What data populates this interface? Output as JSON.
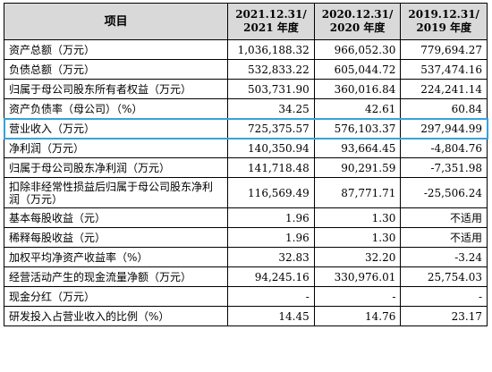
{
  "header": {
    "item": "项目",
    "cols": [
      {
        "line1": "2021.12.31/",
        "line2": "2021 年度"
      },
      {
        "line1": "2020.12.31/",
        "line2": "2020 年度"
      },
      {
        "line1": "2019.12.31/",
        "line2": "2019 年度"
      }
    ]
  },
  "rows": [
    {
      "label": "资产总额（万元）",
      "v": [
        "1,036,188.32",
        "966,052.30",
        "779,694.27"
      ]
    },
    {
      "label": "负债总额（万元）",
      "v": [
        "532,833.22",
        "605,044.72",
        "537,474.16"
      ]
    },
    {
      "label": "归属于母公司股东所有者权益（万元）",
      "v": [
        "503,731.90",
        "360,016.84",
        "224,241.14"
      ]
    },
    {
      "label": "资产负债率（母公司）（%）",
      "v": [
        "34.25",
        "42.61",
        "60.84"
      ]
    },
    {
      "label": "营业收入（万元）",
      "v": [
        "725,375.57",
        "576,103.37",
        "297,944.99"
      ]
    },
    {
      "label": "净利润（万元）",
      "v": [
        "140,350.94",
        "93,664.45",
        "-4,804.76"
      ]
    },
    {
      "label": "归属于母公司股东净利润（万元）",
      "v": [
        "141,718.48",
        "90,291.59",
        "-7,351.98"
      ]
    },
    {
      "label": "扣除非经常性损益后归属于母公司股东净利润（万元）",
      "v": [
        "116,569.49",
        "87,771.71",
        "-25,506.24"
      ]
    },
    {
      "label": "基本每股收益（元）",
      "v": [
        "1.96",
        "1.30",
        "不适用"
      ]
    },
    {
      "label": "稀释每股收益（元）",
      "v": [
        "1.96",
        "1.30",
        "不适用"
      ]
    },
    {
      "label": "加权平均净资产收益率（%）",
      "v": [
        "32.83",
        "32.20",
        "-3.24"
      ]
    },
    {
      "label": "经营活动产生的现金流量净额（万元）",
      "v": [
        "94,245.16",
        "330,976.01",
        "25,754.03"
      ]
    },
    {
      "label": "现金分红（万元）",
      "v": [
        "-",
        "-",
        "-"
      ]
    },
    {
      "label": "研发投入占营业收入的比例（%）",
      "v": [
        "14.45",
        "14.76",
        "23.17"
      ]
    }
  ],
  "highlight_color": "#37a3d8",
  "header_bg": "#d9d9d9"
}
